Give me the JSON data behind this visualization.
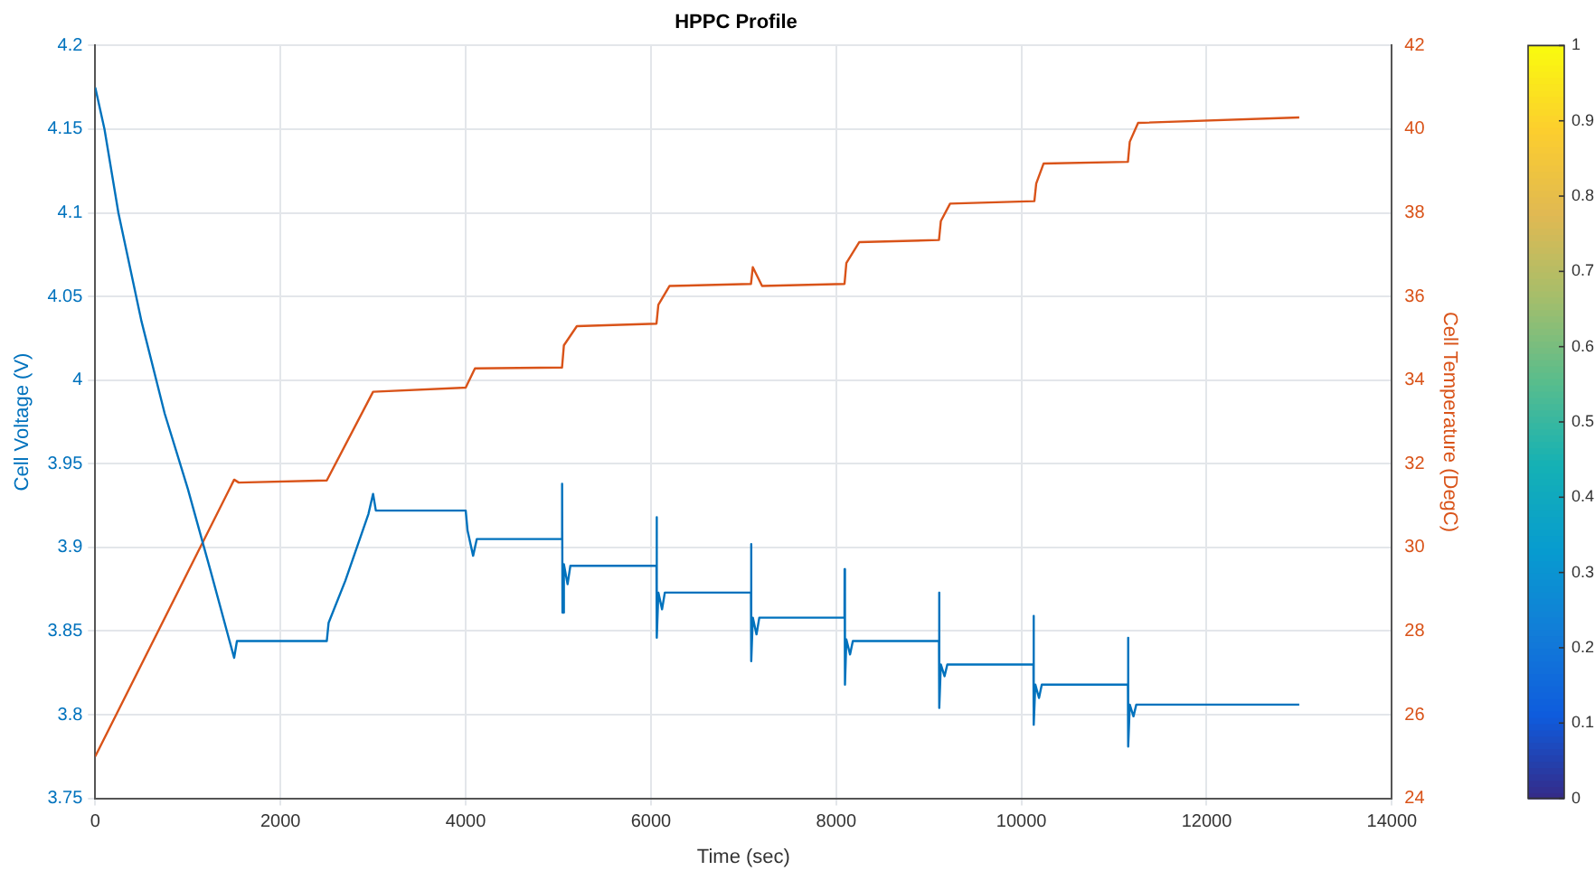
{
  "chart_data": {
    "type": "line",
    "title": "HPPC Profile",
    "xlabel": "Time (sec)",
    "ylabel": "Cell Voltage (V)",
    "y2label": "Cell Temperature (DegC)",
    "xlim": [
      0,
      14000
    ],
    "xticks": [
      0,
      2000,
      4000,
      6000,
      8000,
      10000,
      12000,
      14000
    ],
    "ylim": [
      3.75,
      4.2
    ],
    "yticks": [
      3.75,
      3.8,
      3.85,
      3.9,
      3.95,
      4,
      4.05,
      4.1,
      4.15,
      4.2
    ],
    "y2lim": [
      24,
      42
    ],
    "y2ticks": [
      24,
      26,
      28,
      30,
      32,
      34,
      36,
      38,
      40,
      42
    ],
    "clim": [
      0,
      1
    ],
    "cticks": [
      0,
      0.1,
      0.2,
      0.3,
      0.4,
      0.5,
      0.6,
      0.7,
      0.8,
      0.9,
      1
    ],
    "grid": true,
    "legend": false,
    "marker": "none",
    "line_style": "solid",
    "series": [
      {
        "color": "#0072bd",
        "x": [
          0,
          100,
          250,
          500,
          750,
          1000,
          1250,
          1480,
          1500,
          1530,
          2500,
          2520,
          2700,
          2950,
          3000,
          3030,
          4000,
          4020,
          4080,
          4120,
          5040,
          5041,
          5045,
          5060,
          5100,
          5130,
          6060,
          6061,
          6065,
          6080,
          6120,
          6150,
          7080,
          7081,
          7085,
          7100,
          7140,
          7170,
          8090,
          8091,
          8095,
          8110,
          8150,
          8180,
          9110,
          9111,
          9115,
          9130,
          9170,
          9200,
          10130,
          10131,
          10135,
          10150,
          10190,
          10220,
          11150,
          11151,
          11155,
          11170,
          11210,
          11240,
          13000
        ],
        "values": [
          4.175,
          4.15,
          4.1,
          4.035,
          3.98,
          3.935,
          3.885,
          3.838,
          3.834,
          3.844,
          3.844,
          3.855,
          3.88,
          3.92,
          3.932,
          3.922,
          3.922,
          3.91,
          3.895,
          3.905,
          3.905,
          3.938,
          3.861,
          3.89,
          3.878,
          3.889,
          3.889,
          3.918,
          3.846,
          3.873,
          3.863,
          3.873,
          3.873,
          3.902,
          3.832,
          3.858,
          3.848,
          3.858,
          3.858,
          3.887,
          3.818,
          3.845,
          3.836,
          3.844,
          3.844,
          3.873,
          3.804,
          3.83,
          3.823,
          3.83,
          3.83,
          3.859,
          3.794,
          3.818,
          3.81,
          3.818,
          3.818,
          3.846,
          3.781,
          3.806,
          3.799,
          3.806,
          3.806
        ]
      },
      {
        "color": "#d95319",
        "axis": "y2",
        "x": [
          0,
          1500,
          1550,
          2500,
          3000,
          4000,
          4100,
          5040,
          5060,
          5200,
          6060,
          6080,
          6200,
          7080,
          7100,
          7200,
          8090,
          8110,
          8250,
          9110,
          9130,
          9230,
          10140,
          10160,
          10240,
          11150,
          11170,
          11260,
          13000
        ],
        "values": [
          25,
          31.62,
          31.55,
          31.6,
          33.72,
          33.82,
          34.28,
          34.3,
          34.83,
          35.29,
          35.35,
          35.8,
          36.25,
          36.3,
          36.7,
          36.25,
          36.3,
          36.8,
          37.3,
          37.35,
          37.8,
          38.22,
          38.28,
          38.7,
          39.18,
          39.22,
          39.7,
          40.15,
          40.28
        ]
      }
    ]
  }
}
